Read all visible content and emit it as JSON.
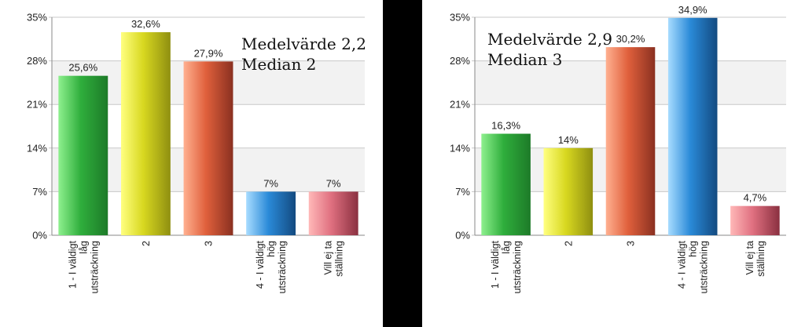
{
  "chart_data": [
    {
      "type": "bar",
      "title": "",
      "xlabel": "",
      "ylabel": "",
      "ylim": [
        0,
        35
      ],
      "yticks": [
        "0%",
        "7%",
        "14%",
        "21%",
        "28%",
        "35%"
      ],
      "categories": [
        [
          "1 - I väldigt",
          "låg",
          "utsträckning"
        ],
        [
          "2"
        ],
        [
          "3"
        ],
        [
          "4 - I väldigt",
          "hög",
          "utsträckning"
        ],
        [
          "Vill ej ta",
          "ställning"
        ]
      ],
      "values": [
        25.6,
        32.6,
        27.9,
        7,
        7
      ],
      "value_labels": [
        "25,6%",
        "32,6%",
        "27,9%",
        "7%",
        "7%"
      ],
      "annotations": [
        "Medelvärde 2,2",
        "Median 2"
      ],
      "grid": true,
      "legend": "none"
    },
    {
      "type": "bar",
      "title": "",
      "xlabel": "",
      "ylabel": "",
      "ylim": [
        0,
        35
      ],
      "yticks": [
        "0%",
        "7%",
        "14%",
        "21%",
        "28%",
        "35%"
      ],
      "categories": [
        [
          "1 - I väldigt",
          "låg",
          "utsträckning"
        ],
        [
          "2"
        ],
        [
          "3"
        ],
        [
          "4 - I väldigt",
          "hög",
          "utsträckning"
        ],
        [
          "Vill ej ta",
          "ställning"
        ]
      ],
      "values": [
        16.3,
        14,
        30.2,
        34.9,
        4.7
      ],
      "value_labels": [
        "16,3%",
        "14%",
        "30,2%",
        "34,9%",
        "4,7%"
      ],
      "annotations": [
        "Medelvärde 2,9",
        "Median 3"
      ],
      "grid": true,
      "legend": "none"
    }
  ],
  "colors": {
    "bar_series": [
      [
        "#8ef08e",
        "#2fae3c",
        "#1d7a28"
      ],
      [
        "#ffff80",
        "#d8d820",
        "#8f8f10"
      ],
      [
        "#ffb090",
        "#e0603c",
        "#8a3020"
      ],
      [
        "#a8dcff",
        "#2a8ad8",
        "#134a80"
      ],
      [
        "#ffb8b8",
        "#e07080",
        "#8a3040"
      ]
    ],
    "band": "#f2f2f2",
    "axis": "#888888",
    "gridline": "#c8c8c8",
    "divider": "#000000"
  }
}
